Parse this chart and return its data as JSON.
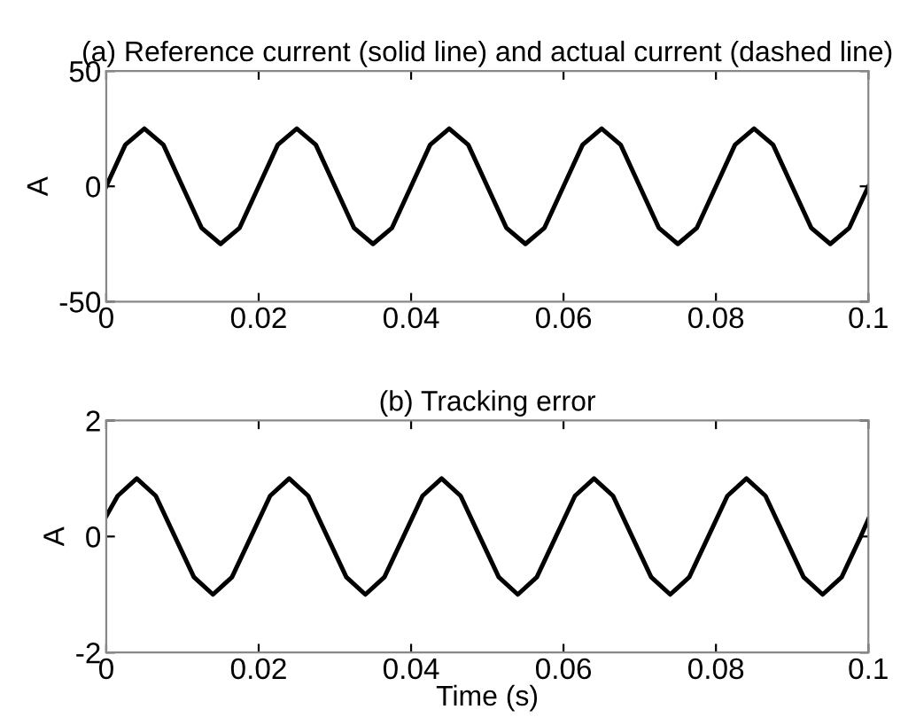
{
  "chart_data": [
    {
      "type": "line",
      "title": "(a) Reference current (solid line) and actual current (dashed line)",
      "ylabel": "A",
      "x": [
        0,
        0.0025,
        0.005,
        0.0075,
        0.01,
        0.0125,
        0.015,
        0.0175,
        0.02,
        0.0225,
        0.025,
        0.0275,
        0.03,
        0.0325,
        0.035,
        0.0375,
        0.04,
        0.0425,
        0.045,
        0.0475,
        0.05,
        0.0525,
        0.055,
        0.0575,
        0.06,
        0.0625,
        0.065,
        0.0675,
        0.07,
        0.0725,
        0.075,
        0.0775,
        0.08,
        0.0825,
        0.085,
        0.0875,
        0.09,
        0.0925,
        0.095,
        0.0975,
        0.1
      ],
      "series": [
        {
          "color": "#000000",
          "values": [
            0,
            18,
            25,
            18,
            0,
            -18,
            -25,
            -18,
            0,
            18,
            25,
            18,
            0,
            -18,
            -25,
            -18,
            0,
            18,
            25,
            18,
            0,
            -18,
            -25,
            -18,
            0,
            18,
            25,
            18,
            0,
            -18,
            -25,
            -18,
            0,
            18,
            25,
            18,
            0,
            -18,
            -25,
            -18,
            0
          ]
        }
      ],
      "xlim": [
        0,
        0.1
      ],
      "xticks": [
        0,
        0.02,
        0.04,
        0.06,
        0.08,
        0.1
      ],
      "ylim": [
        -50,
        50
      ],
      "yticks": [
        -50,
        0,
        50
      ],
      "grid": false,
      "legend": false,
      "line_style": "solid"
    },
    {
      "type": "line",
      "title": "(b) Tracking error",
      "xlabel": "Time (s)",
      "ylabel": "A",
      "x": [
        0,
        0.0015,
        0.004,
        0.0065,
        0.009,
        0.0115,
        0.014,
        0.0165,
        0.019,
        0.0215,
        0.024,
        0.0265,
        0.029,
        0.0315,
        0.034,
        0.0365,
        0.039,
        0.0415,
        0.044,
        0.0465,
        0.049,
        0.0515,
        0.054,
        0.0565,
        0.059,
        0.0615,
        0.064,
        0.0665,
        0.069,
        0.0715,
        0.074,
        0.0765,
        0.079,
        0.0815,
        0.084,
        0.0865,
        0.089,
        0.0915,
        0.094,
        0.0965,
        0.099,
        0.1
      ],
      "series": [
        {
          "color": "#000000",
          "values": [
            0.35,
            0.7,
            1,
            0.7,
            0,
            -0.7,
            -1,
            -0.7,
            0,
            0.7,
            1,
            0.7,
            0,
            -0.7,
            -1,
            -0.7,
            0,
            0.7,
            1,
            0.7,
            0,
            -0.7,
            -1,
            -0.7,
            0,
            0.7,
            1,
            0.7,
            0,
            -0.7,
            -1,
            -0.7,
            0,
            0.7,
            1,
            0.7,
            0,
            -0.7,
            -1,
            -0.7,
            0,
            0.3
          ]
        }
      ],
      "xlim": [
        0,
        0.1
      ],
      "xticks": [
        0,
        0.02,
        0.04,
        0.06,
        0.08,
        0.1
      ],
      "ylim": [
        -2,
        2
      ],
      "yticks": [
        -2,
        0,
        2
      ],
      "grid": false,
      "legend": false,
      "line_style": "solid"
    }
  ]
}
